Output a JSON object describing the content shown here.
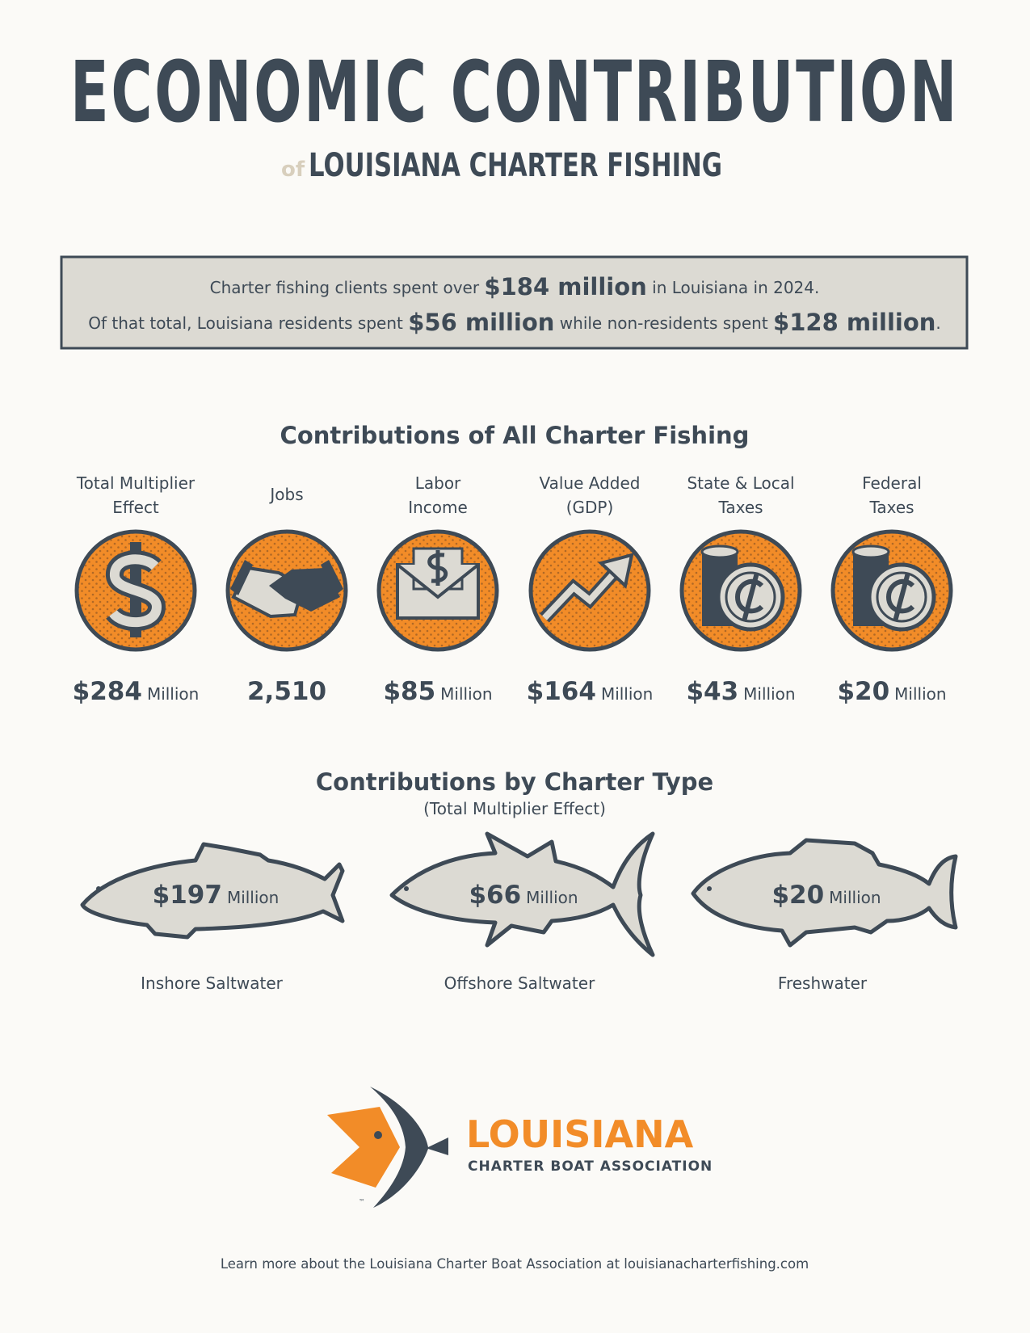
{
  "header": {
    "title": "ECONOMIC CONTRIBUTION",
    "of": "of",
    "subtitle": "LOUISIANA CHARTER FISHING"
  },
  "summary": {
    "lines": [
      [
        {
          "text": "Charter fishing clients spent over ",
          "emphasis": false
        },
        {
          "text": "$184 million",
          "emphasis": true
        },
        {
          "text": " in Louisiana in 2024.",
          "emphasis": false
        }
      ],
      [
        {
          "text": "Of that total, Louisiana residents spent ",
          "emphasis": false
        },
        {
          "text": "$56 million",
          "emphasis": true
        },
        {
          "text": " while non-residents spent ",
          "emphasis": false
        },
        {
          "text": "$128 million",
          "emphasis": true
        },
        {
          "text": ".",
          "emphasis": false
        }
      ]
    ]
  },
  "contributions": {
    "title": "Contributions of All Charter Fishing",
    "items": [
      {
        "label": [
          "Total Multiplier",
          "Effect"
        ],
        "value": "$284",
        "unit": "Million"
      },
      {
        "label": [
          "Jobs"
        ],
        "value": "2,510",
        "unit": null
      },
      {
        "label": [
          "Labor",
          "Income"
        ],
        "value": "$85",
        "unit": "Million"
      },
      {
        "label": [
          "Value Added",
          "(GDP)"
        ],
        "value": "$164",
        "unit": "Million"
      },
      {
        "label": [
          "State & Local",
          "Taxes"
        ],
        "value": "$43",
        "unit": "Million"
      },
      {
        "label": [
          "Federal",
          "Taxes"
        ],
        "value": "$20",
        "unit": "Million"
      }
    ]
  },
  "by_type": {
    "title": "Contributions by Charter Type",
    "subtitle": "(Total Multiplier Effect)",
    "items": [
      {
        "value": "$197",
        "unit": "Million",
        "label": "Inshore Saltwater"
      },
      {
        "value": "$66",
        "unit": "Million",
        "label": "Offshore Saltwater"
      },
      {
        "value": "$20",
        "unit": "Million",
        "label": "Freshwater"
      }
    ]
  },
  "logo": {
    "name": "LOUISIANA",
    "tagline": "CHARTER BOAT ASSOCIATION",
    "trademark": "™"
  },
  "footer": "Learn more about the Louisiana Charter Boat Association at louisianacharterfishing.com"
}
